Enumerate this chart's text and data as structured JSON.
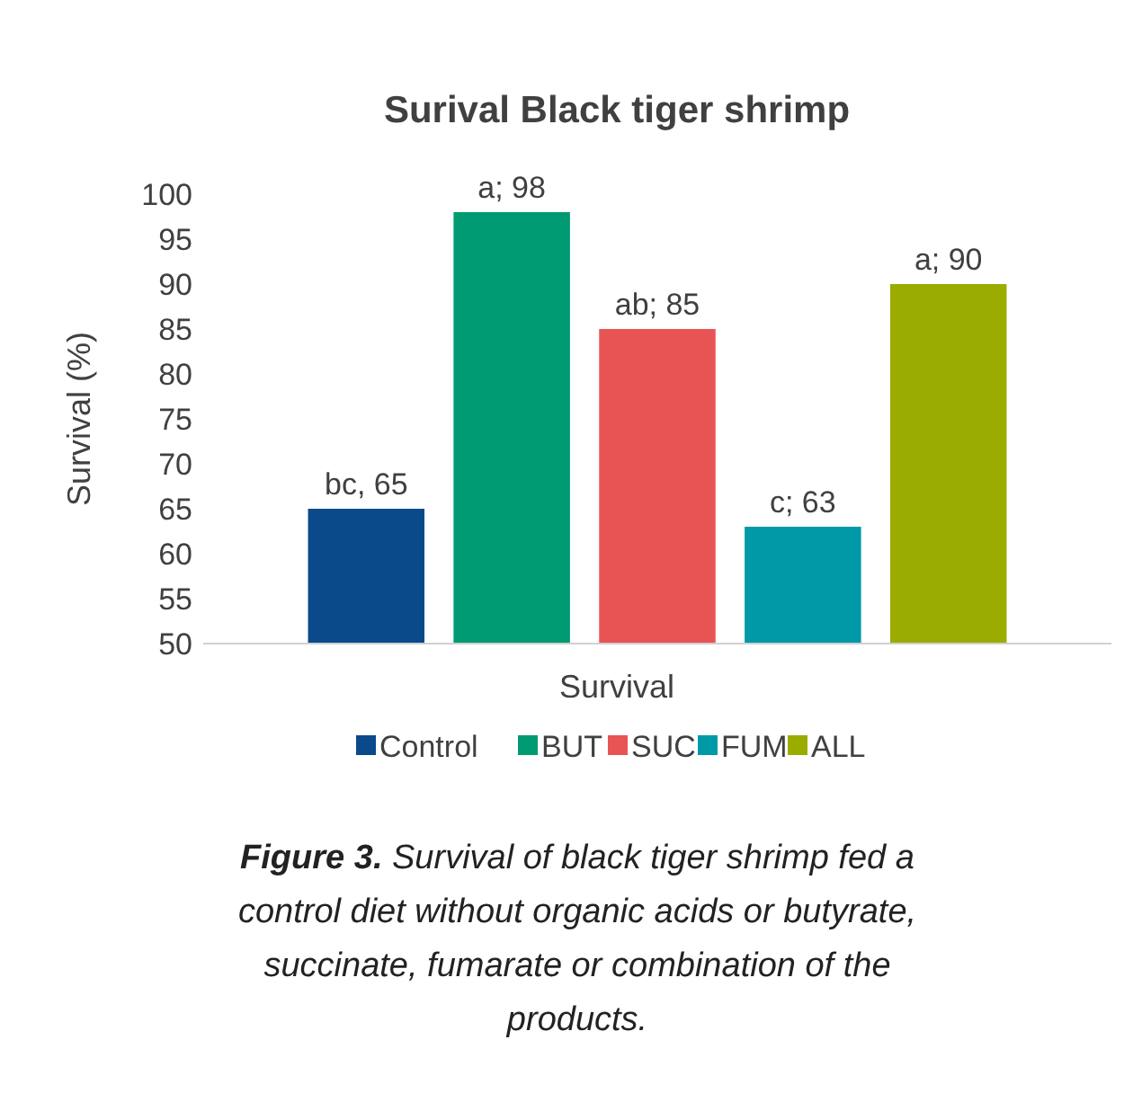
{
  "chart_data": {
    "type": "bar",
    "title": "Surival Black tiger shrimp",
    "xlabel": "Survival",
    "ylabel": "Survival (%)",
    "categories": [
      null
    ],
    "series": [
      {
        "name": "Control",
        "color": "#0a4a8a",
        "values": [
          65
        ],
        "value_labels": [
          "bc, 65"
        ]
      },
      {
        "name": "BUT",
        "color": "#009a73",
        "values": [
          98
        ],
        "value_labels": [
          "a; 98"
        ]
      },
      {
        "name": "SUC",
        "color": "#e85454",
        "values": [
          85
        ],
        "value_labels": [
          "ab; 85"
        ]
      },
      {
        "name": "FUM",
        "color": "#0099a8",
        "values": [
          63
        ],
        "value_labels": [
          "c; 63"
        ]
      },
      {
        "name": "ALL",
        "color": "#9aac00",
        "values": [
          90
        ],
        "value_labels": [
          "a; 90"
        ]
      }
    ],
    "ylim": [
      50,
      100
    ],
    "yticks": [
      50,
      55,
      60,
      65,
      70,
      75,
      80,
      85,
      90,
      95,
      100
    ],
    "grid": false,
    "legend": "bottom",
    "annotations": [
      "Figure 3. Survival of black tiger shrimp fed a control diet without organic acids or butyrate, succinate, fumarate or combination of the products."
    ]
  }
}
